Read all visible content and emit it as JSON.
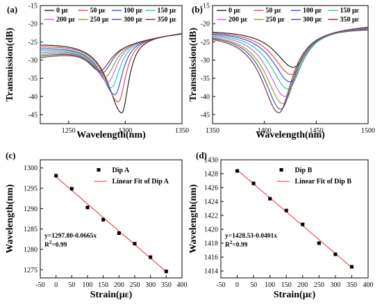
{
  "chart_data": [
    {
      "panel": "(a)",
      "type": "line",
      "xlabel": "Wavelength(nm)",
      "ylabel": "Transmission(dB)",
      "xlim": [
        1225,
        1350
      ],
      "ylim": [
        -47.5,
        -15
      ],
      "xticks": [
        1250,
        1300,
        1350
      ],
      "yticks": [
        -45,
        -40,
        -35,
        -30,
        -25,
        -20,
        -15
      ],
      "legend_position": "top",
      "series": [
        {
          "name": "0 με",
          "color": "#222222",
          "dip_x": 1297,
          "dip_y": -44.5,
          "left_y": -25.0,
          "wl": 27,
          "wr": 13
        },
        {
          "name": "50 με",
          "color": "#e8474f",
          "dip_x": 1294,
          "dip_y": -41.5,
          "left_y": -25.6,
          "wl": 27,
          "wr": 14
        },
        {
          "name": "100 με",
          "color": "#2d56d8",
          "dip_x": 1291,
          "dip_y": -39.5,
          "left_y": -26.2,
          "wl": 27,
          "wr": 15
        },
        {
          "name": "150 με",
          "color": "#2ec6a6",
          "dip_x": 1288,
          "dip_y": -37.5,
          "left_y": -26.8,
          "wl": 26,
          "wr": 16
        },
        {
          "name": "200 με",
          "color": "#c06ad8",
          "dip_x": 1285,
          "dip_y": -36.0,
          "left_y": -27.4,
          "wl": 25,
          "wr": 17
        },
        {
          "name": "250 με",
          "color": "#9a9a2a",
          "dip_x": 1283,
          "dip_y": -34.5,
          "left_y": -28.0,
          "wl": 24,
          "wr": 18
        },
        {
          "name": "300 με",
          "color": "#3f56b0",
          "dip_x": 1280,
          "dip_y": -33.5,
          "left_y": -28.5,
          "wl": 23,
          "wr": 19
        },
        {
          "name": "350 με",
          "color": "#7a3535",
          "dip_x": 1278,
          "dip_y": -33.0,
          "left_y": -29.0,
          "wl": 22,
          "wr": 20
        }
      ],
      "right_end_y": -22.5
    },
    {
      "panel": "(b)",
      "type": "line",
      "xlabel": "Wavelength(nm)",
      "ylabel": "Transmission(dB)",
      "xlim": [
        1350,
        1500
      ],
      "ylim": [
        -47.5,
        -15
      ],
      "xticks": [
        1350,
        1400,
        1450,
        1500
      ],
      "yticks": [
        -45,
        -40,
        -35,
        -30,
        -25,
        -20,
        -15
      ],
      "legend_position": "top",
      "series": [
        {
          "name": "0 με",
          "color": "#222222",
          "dip_x": 1428,
          "dip_y": -32.0,
          "left_y": -21.6,
          "right_y": -21.2,
          "wl": 38,
          "wr": 28
        },
        {
          "name": "50 με",
          "color": "#e8474f",
          "dip_x": 1426,
          "dip_y": -34.0,
          "left_y": -21.7,
          "right_y": -21.0,
          "wl": 38,
          "wr": 28
        },
        {
          "name": "100 με",
          "color": "#2d56d8",
          "dip_x": 1425,
          "dip_y": -36.0,
          "left_y": -21.8,
          "right_y": -20.8,
          "wl": 38,
          "wr": 28
        },
        {
          "name": "150 με",
          "color": "#2ec6a6",
          "dip_x": 1423,
          "dip_y": -38.0,
          "left_y": -21.9,
          "right_y": -20.6,
          "wl": 38,
          "wr": 28
        },
        {
          "name": "200 με",
          "color": "#c06ad8",
          "dip_x": 1420,
          "dip_y": -40.0,
          "left_y": -22.0,
          "right_y": -20.5,
          "wl": 37,
          "wr": 28
        },
        {
          "name": "250 με",
          "color": "#9a9a2a",
          "dip_x": 1418,
          "dip_y": -42.0,
          "left_y": -22.1,
          "right_y": -20.4,
          "wl": 37,
          "wr": 28
        },
        {
          "name": "300 με",
          "color": "#3f56b0",
          "dip_x": 1416,
          "dip_y": -43.5,
          "left_y": -22.2,
          "right_y": -20.3,
          "wl": 36,
          "wr": 28
        },
        {
          "name": "350 με",
          "color": "#7a3535",
          "dip_x": 1414,
          "dip_y": -44.5,
          "left_y": -22.3,
          "right_y": -20.2,
          "wl": 36,
          "wr": 28
        }
      ]
    },
    {
      "panel": "(c)",
      "type": "scatter",
      "xlabel": "Strain(με)",
      "ylabel": "Wavelength(nm)",
      "xlim": [
        -50,
        400
      ],
      "ylim": [
        1273,
        1302
      ],
      "xticks": [
        -50,
        0,
        50,
        100,
        150,
        200,
        250,
        300,
        350,
        400
      ],
      "yticks": [
        1275,
        1280,
        1285,
        1290,
        1295,
        1300
      ],
      "legend_position": "top-right",
      "points_name": "Dip A",
      "fit_name": "Linear Fit of Dip A",
      "x": [
        0,
        50,
        100,
        150,
        200,
        250,
        300,
        350
      ],
      "y": [
        1298.1,
        1294.9,
        1290.3,
        1287.3,
        1284.0,
        1281.4,
        1278.1,
        1274.6
      ],
      "fit": {
        "intercept": 1297.8,
        "slope": -0.0665
      },
      "equation": "y=1297.80-0.0665x",
      "r2_prefix": "R",
      "r2_sup": "2",
      "r2_suffix": "=0.99"
    },
    {
      "panel": "(d)",
      "type": "scatter",
      "xlabel": "Strain(με)",
      "ylabel": "Wavelength(nm)",
      "xlim": [
        -50,
        400
      ],
      "ylim": [
        1413,
        1430
      ],
      "xticks": [
        -50,
        0,
        50,
        100,
        150,
        200,
        250,
        300,
        350,
        400
      ],
      "yticks": [
        1414,
        1416,
        1418,
        1420,
        1422,
        1424,
        1426,
        1428,
        1430
      ],
      "legend_position": "top-right",
      "points_name": "Dip B",
      "fit_name": "Linear Fit of Dip B",
      "x": [
        0,
        50,
        100,
        150,
        200,
        250,
        300,
        350
      ],
      "y": [
        1428.4,
        1426.6,
        1424.4,
        1422.7,
        1420.7,
        1418.0,
        1416.4,
        1414.6
      ],
      "fit": {
        "intercept": 1428.53,
        "slope": -0.0401
      },
      "equation": "y=1428.53-0.0401x",
      "r2_prefix": "R",
      "r2_sup": "2",
      "r2_suffix": "=0.99"
    }
  ]
}
